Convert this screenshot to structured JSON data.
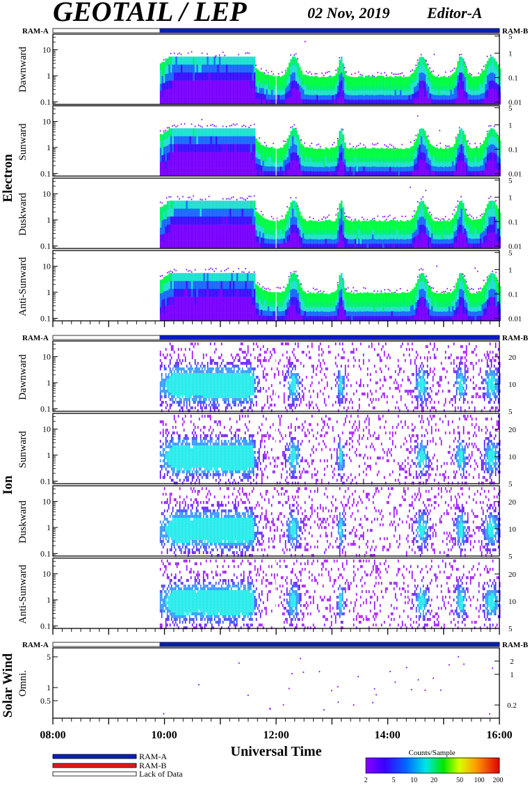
{
  "header": {
    "title": "GEOTAIL / LEP",
    "date": "02 Nov, 2019",
    "editor": "Editor-A"
  },
  "ram_labels": {
    "left": "RAM-A",
    "right": "RAM-B"
  },
  "groups": [
    {
      "label": "Electron",
      "panels": [
        "Dawnward",
        "Sunward",
        "Duskward",
        "Anti-Sunward"
      ]
    },
    {
      "label": "Ion",
      "panels": [
        "Dawnward",
        "Sunward",
        "Duskward",
        "Anti-Sunward"
      ]
    },
    {
      "label": "Solar Wind",
      "panels": [
        "Omni."
      ]
    }
  ],
  "x_axis": {
    "title": "Universal Time",
    "ticks": [
      "08:00",
      "10:00",
      "12:00",
      "14:00",
      "16:00"
    ]
  },
  "legend": {
    "ram_a": "RAM-A",
    "ram_b": "RAM-B",
    "lack": "Lack of Data"
  },
  "colorbar": {
    "title": "Counts/Sample",
    "ticks": [
      "2",
      "5",
      "10",
      "20",
      "50",
      "100",
      "200"
    ]
  },
  "colors": {
    "ram_a_bar": "#0b1fbf",
    "ram_b_bar": "#e01a1a",
    "lack_bar": "#ffffff"
  },
  "chart_data": [
    {
      "type": "heatmap",
      "group": "Electron",
      "panels": [
        "Dawnward",
        "Sunward",
        "Duskward",
        "Anti-Sunward"
      ],
      "x_range": [
        "08:00",
        "16:00"
      ],
      "data_start": "09:55",
      "left_axis_ticks": [
        "0.1",
        "1",
        "10"
      ],
      "right_axis_ticks": [
        "0.01",
        "0.1",
        "1",
        "5"
      ],
      "ylim_left": [
        0.08,
        40
      ],
      "ylim_right": [
        0.008,
        6
      ],
      "log_scale": true,
      "colorbar_range": [
        2,
        200
      ]
    },
    {
      "type": "heatmap",
      "group": "Ion",
      "panels": [
        "Dawnward",
        "Sunward",
        "Duskward",
        "Anti-Sunward"
      ],
      "x_range": [
        "08:00",
        "16:00"
      ],
      "data_start": "09:55",
      "left_axis_ticks": [
        "0.1",
        "1",
        "10"
      ],
      "right_axis_ticks": [
        "5",
        "10",
        "20"
      ],
      "ylim_left": [
        0.08,
        40
      ],
      "ylim_right": [
        5,
        30
      ],
      "log_scale": true,
      "colorbar_range": [
        2,
        200
      ]
    },
    {
      "type": "scatter",
      "group": "Solar Wind",
      "panels": [
        "Omni."
      ],
      "x_range": [
        "08:00",
        "16:00"
      ],
      "left_axis_ticks": [
        "0.5",
        "1",
        "5"
      ],
      "right_axis_ticks": [
        "0.2",
        "1",
        "2"
      ],
      "log_scale": true
    }
  ]
}
